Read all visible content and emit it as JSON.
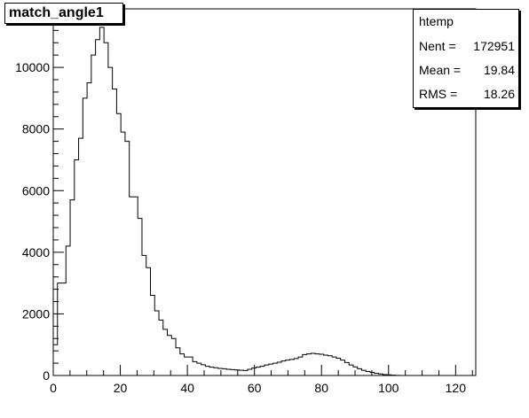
{
  "title": "match_angle1",
  "stats": {
    "name": "htemp",
    "rows": [
      {
        "label": "Nent =",
        "value": "172951"
      },
      {
        "label": "Mean  =",
        "value": "19.84"
      },
      {
        "label": "RMS   =",
        "value": "18.26"
      }
    ]
  },
  "chart_data": {
    "type": "bar",
    "title": "match_angle1",
    "xlabel": "",
    "ylabel": "",
    "xlim": [
      0,
      126
    ],
    "ylim": [
      0,
      11900
    ],
    "bin_width": 1.26,
    "x_ticks": [
      0,
      20,
      40,
      60,
      80,
      100,
      120
    ],
    "y_ticks": [
      0,
      2000,
      4000,
      6000,
      8000,
      10000
    ],
    "values": [
      1000,
      3000,
      3000,
      4200,
      5700,
      7000,
      7700,
      9000,
      9500,
      10400,
      10900,
      11300,
      10800,
      10000,
      9300,
      8500,
      7900,
      7600,
      5800,
      5800,
      5100,
      3900,
      3500,
      2600,
      2100,
      1800,
      1500,
      1300,
      1200,
      900,
      700,
      600,
      600,
      450,
      400,
      350,
      300,
      270,
      250,
      230,
      220,
      200,
      190,
      180,
      170,
      160,
      200,
      240,
      270,
      300,
      340,
      370,
      400,
      430,
      470,
      500,
      520,
      550,
      600,
      680,
      700,
      720,
      700,
      690,
      660,
      640,
      600,
      560,
      500,
      420,
      340,
      280,
      220,
      170,
      130,
      100,
      70,
      50,
      30,
      20,
      10,
      5,
      0,
      0,
      0,
      0,
      0,
      0,
      0,
      0,
      0,
      0,
      0,
      0,
      0,
      0,
      0,
      0,
      0,
      0
    ],
    "grid": false,
    "legend": "top-right"
  }
}
